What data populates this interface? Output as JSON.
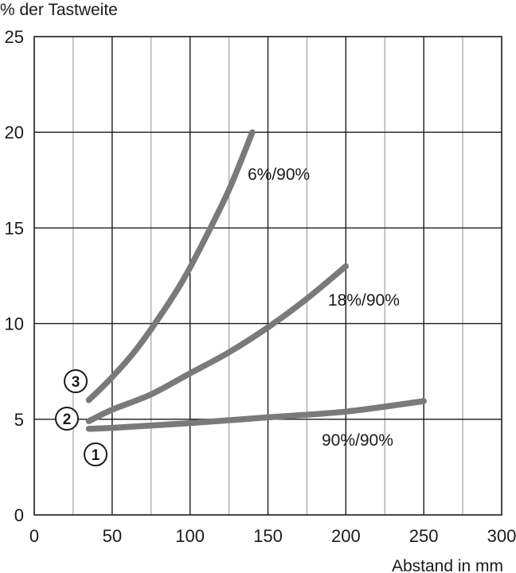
{
  "chart_data": {
    "type": "line",
    "title": "",
    "ylabel": "% der Tastweite",
    "xlabel": "Abstand in mm",
    "xlim": [
      0,
      300
    ],
    "ylim": [
      0,
      25
    ],
    "xticks": [
      "0",
      "50",
      "100",
      "150",
      "200",
      "250",
      "300"
    ],
    "yticks": [
      "0",
      "5",
      "10",
      "15",
      "20",
      "25"
    ],
    "grid": true,
    "series": [
      {
        "name": "90%/90%",
        "marker": "1",
        "color": "#7a7a7a",
        "x": [
          35,
          50,
          100,
          150,
          200,
          250
        ],
        "y": [
          4.5,
          4.55,
          4.8,
          5.1,
          5.4,
          5.95
        ]
      },
      {
        "name": "18%/90%",
        "marker": "2",
        "color": "#7a7a7a",
        "x": [
          35,
          50,
          75,
          100,
          125,
          150,
          175,
          200
        ],
        "y": [
          4.9,
          5.5,
          6.3,
          7.4,
          8.5,
          9.8,
          11.3,
          13.0
        ]
      },
      {
        "name": "6%/90%",
        "marker": "3",
        "color": "#7a7a7a",
        "x": [
          35,
          50,
          65,
          80,
          95,
          110,
          125,
          140
        ],
        "y": [
          6.0,
          7.2,
          8.6,
          10.3,
          12.2,
          14.5,
          17.0,
          20.0
        ]
      }
    ]
  }
}
